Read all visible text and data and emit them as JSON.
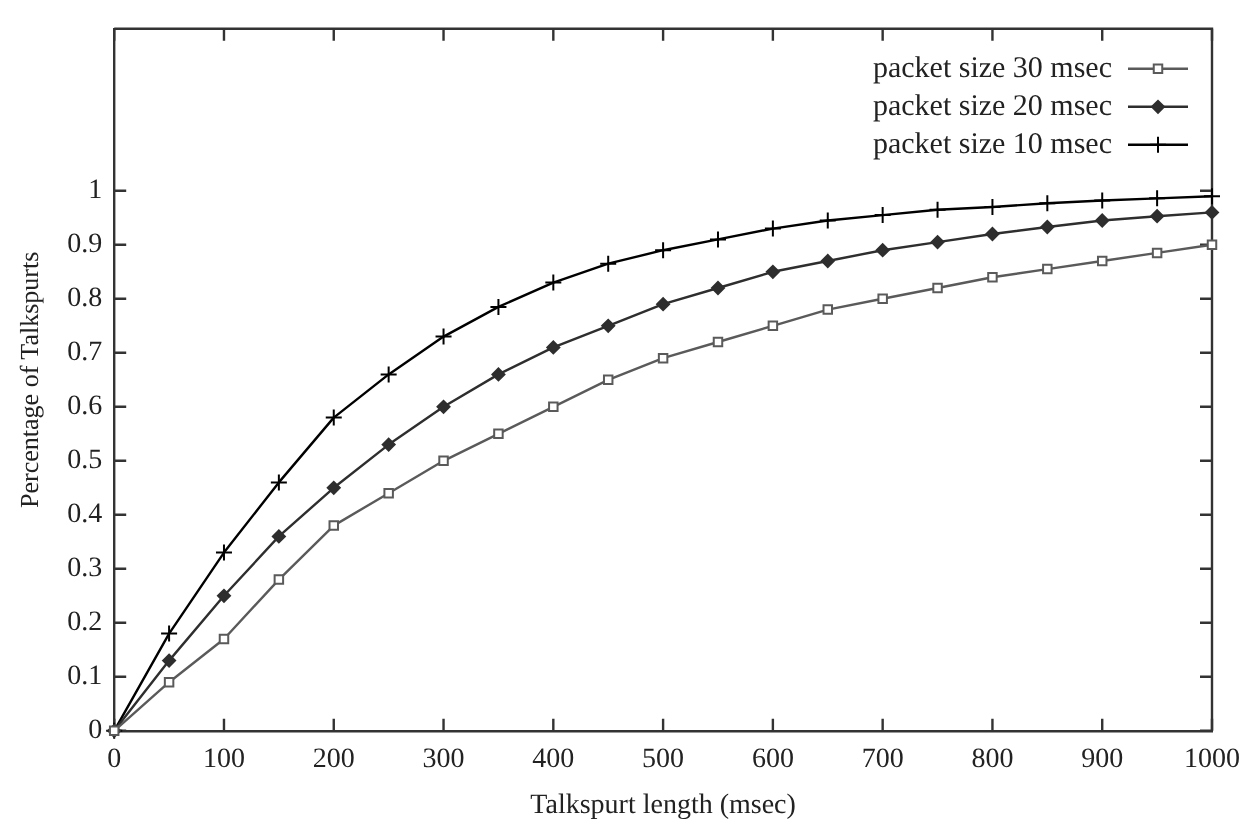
{
  "chart_data": {
    "type": "line",
    "xlabel": "Talkspurt length (msec)",
    "ylabel": "Percentage of Talkspurts",
    "x": [
      0,
      50,
      100,
      150,
      200,
      250,
      300,
      350,
      400,
      450,
      500,
      550,
      600,
      650,
      700,
      750,
      800,
      850,
      900,
      950,
      1000
    ],
    "series": [
      {
        "name": "packet size 30 msec",
        "color": "#5a5a5a",
        "marker": "square",
        "values": [
          0,
          0.09,
          0.17,
          0.28,
          0.38,
          0.44,
          0.5,
          0.55,
          0.6,
          0.65,
          0.69,
          0.72,
          0.75,
          0.78,
          0.8,
          0.82,
          0.84,
          0.855,
          0.87,
          0.885,
          0.9
        ]
      },
      {
        "name": "packet size 20 msec",
        "color": "#2e2e2e",
        "marker": "diamond",
        "values": [
          0,
          0.13,
          0.25,
          0.36,
          0.45,
          0.53,
          0.6,
          0.66,
          0.71,
          0.75,
          0.79,
          0.82,
          0.85,
          0.87,
          0.89,
          0.905,
          0.92,
          0.933,
          0.945,
          0.953,
          0.96
        ]
      },
      {
        "name": "packet size 10 msec",
        "color": "#000000",
        "marker": "cross",
        "values": [
          0,
          0.18,
          0.33,
          0.46,
          0.58,
          0.66,
          0.73,
          0.785,
          0.83,
          0.865,
          0.89,
          0.91,
          0.93,
          0.945,
          0.955,
          0.965,
          0.97,
          0.977,
          0.982,
          0.986,
          0.99
        ]
      }
    ],
    "xlim": [
      0,
      1000
    ],
    "xticks": [
      0,
      100,
      200,
      300,
      400,
      500,
      600,
      700,
      800,
      900,
      1000
    ],
    "ylim": [
      0,
      1.3
    ],
    "yticks": [
      0,
      0.1,
      0.2,
      0.3,
      0.4,
      0.5,
      0.6,
      0.7,
      0.8,
      0.9,
      1
    ],
    "grid": false,
    "legend": "top right",
    "line_style": "solid"
  }
}
